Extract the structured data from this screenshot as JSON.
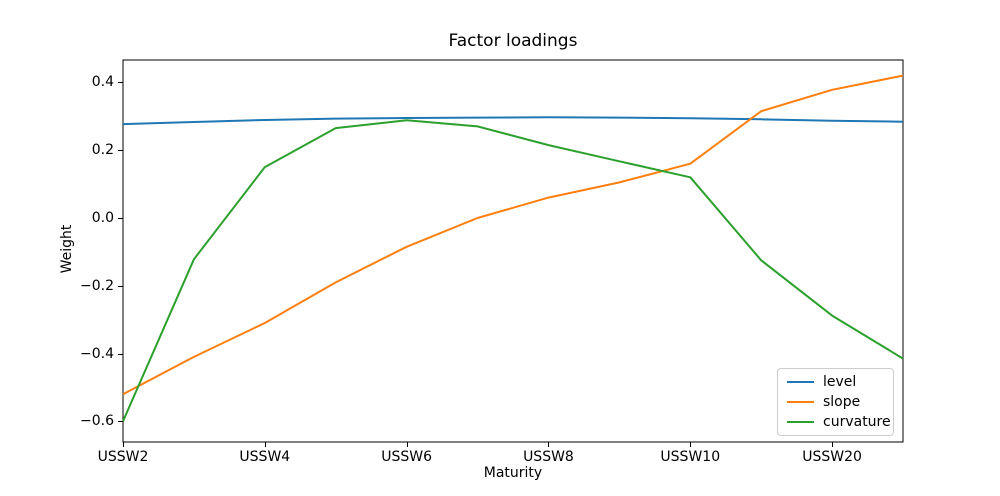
{
  "chart_data": {
    "type": "line",
    "title": "Factor loadings",
    "xlabel": "Maturity",
    "ylabel": "Weight",
    "x_index_range": [
      0,
      11
    ],
    "ylim": [
      -0.661,
      0.466
    ],
    "grid": false,
    "x_ticks": [
      {
        "index": 0,
        "label": "USSW2"
      },
      {
        "index": 2,
        "label": "USSW4"
      },
      {
        "index": 4,
        "label": "USSW6"
      },
      {
        "index": 6,
        "label": "USSW8"
      },
      {
        "index": 8,
        "label": "USSW10"
      },
      {
        "index": 10,
        "label": "USSW20"
      }
    ],
    "y_ticks": [
      {
        "value": 0.4,
        "label": "0.4"
      },
      {
        "value": 0.2,
        "label": "0.2"
      },
      {
        "value": 0.0,
        "label": "0.0"
      },
      {
        "value": -0.2,
        "label": "−0.2"
      },
      {
        "value": -0.4,
        "label": "−0.4"
      },
      {
        "value": -0.6,
        "label": "−0.6"
      }
    ],
    "series": [
      {
        "name": "level",
        "color": "#1f77b4",
        "values": [
          0.277,
          0.283,
          0.289,
          0.293,
          0.295,
          0.296,
          0.297,
          0.296,
          0.294,
          0.291,
          0.287,
          0.284
        ]
      },
      {
        "name": "slope",
        "color": "#ff7f0e",
        "values": [
          -0.52,
          -0.41,
          -0.31,
          -0.19,
          -0.085,
          0.0,
          0.06,
          0.105,
          0.16,
          0.315,
          0.378,
          0.42
        ]
      },
      {
        "name": "curvature",
        "color": "#2ca02c",
        "values": [
          -0.6,
          -0.122,
          0.15,
          0.265,
          0.288,
          0.27,
          0.215,
          0.167,
          0.12,
          -0.125,
          -0.288,
          -0.415
        ]
      }
    ],
    "legend": {
      "position": "lower right",
      "entries": [
        "level",
        "slope",
        "curvature"
      ]
    }
  },
  "colors": {
    "background": "#ffffff",
    "spine": "#000000",
    "tick": "#000000",
    "text": "#000000",
    "legend_border": "#cccccc"
  }
}
